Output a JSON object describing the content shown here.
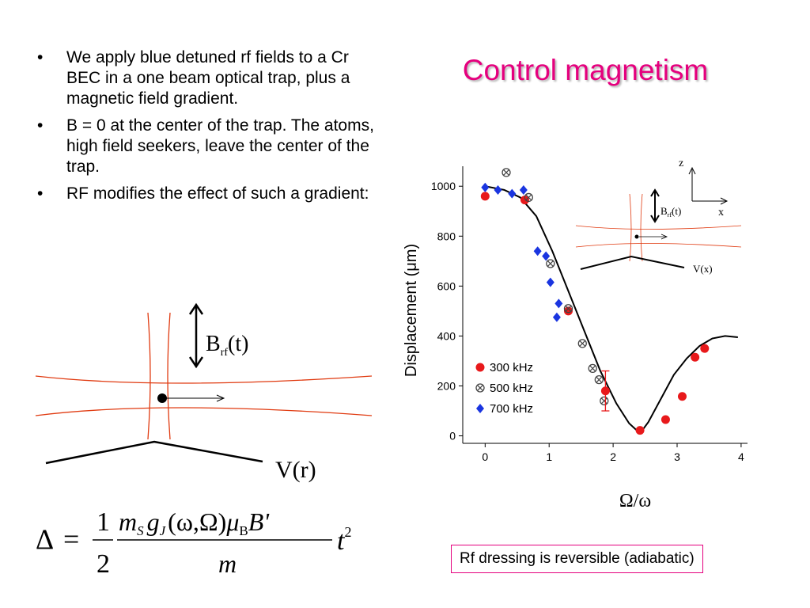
{
  "slide": {
    "title": "Control magnetism",
    "bullets": [
      "We apply blue detuned rf fields to a Cr BEC in a one beam optical trap, plus a magnetic field gradient.",
      "B = 0 at the center of the trap. The atoms, high field seekers, leave the center of the trap.",
      "RF modifies the effect of such a gradient:"
    ],
    "bullet_symbol": "•",
    "note": "Rf dressing is reversible (adiabatic)"
  },
  "diagram": {
    "brf_main": "B",
    "brf_sub": "rf",
    "brf_arg": "(t)",
    "potential_label": "V(r)"
  },
  "formula": {
    "lhs": "Δ",
    "eq": "=",
    "frac_num": "1",
    "frac_den": "2",
    "num_text": "m",
    "num_s": "S",
    "g_text": "g",
    "g_sub": "J",
    "args": "(ω,Ω)",
    "mu": "μ",
    "mu_sub": "B",
    "bprime": "B'",
    "den": "m",
    "t": "t",
    "t_exp": "2"
  },
  "inset": {
    "axis_z": "z",
    "axis_x": "x",
    "brf_main": "B",
    "brf_sub": "rf",
    "brf_arg": "(t)",
    "potential_label": "V(x)"
  },
  "chart_data": {
    "type": "scatter",
    "xlabel": "Ω/ω",
    "ylabel": "Displacement (μm)",
    "xlim": [
      -0.35,
      4.1
    ],
    "ylim": [
      -30,
      1080
    ],
    "x_ticks": [
      0,
      1,
      2,
      3,
      4
    ],
    "y_ticks": [
      0,
      200,
      400,
      600,
      800,
      1000
    ],
    "legend_position": "bottom-left",
    "series": [
      {
        "name": "300 kHz",
        "marker": "circle",
        "color": "#e8191b",
        "points": [
          [
            0.0,
            960
          ],
          [
            0.62,
            945
          ],
          [
            1.3,
            500
          ],
          [
            1.88,
            180
          ],
          [
            2.42,
            22
          ],
          [
            2.82,
            65
          ],
          [
            3.08,
            158
          ],
          [
            3.28,
            315
          ],
          [
            3.43,
            350
          ]
        ]
      },
      {
        "name": "500 kHz",
        "marker": "otimes",
        "color": "#444444",
        "points": [
          [
            0.33,
            1055
          ],
          [
            0.68,
            955
          ],
          [
            1.02,
            690
          ],
          [
            1.3,
            510
          ],
          [
            1.52,
            370
          ],
          [
            1.68,
            270
          ],
          [
            1.78,
            225
          ],
          [
            1.86,
            140
          ]
        ]
      },
      {
        "name": "700 kHz",
        "marker": "diamond",
        "color": "#1a35e0",
        "points": [
          [
            0.0,
            995
          ],
          [
            0.2,
            985
          ],
          [
            0.42,
            970
          ],
          [
            0.6,
            985
          ],
          [
            0.82,
            740
          ],
          [
            0.95,
            720
          ],
          [
            1.02,
            615
          ],
          [
            1.12,
            475
          ],
          [
            1.15,
            530
          ]
        ]
      },
      {
        "name": "",
        "marker": "line",
        "color": "#000000",
        "points": [
          [
            0.0,
            1000
          ],
          [
            0.3,
            985
          ],
          [
            0.55,
            955
          ],
          [
            0.8,
            880
          ],
          [
            1.05,
            740
          ],
          [
            1.3,
            580
          ],
          [
            1.55,
            420
          ],
          [
            1.8,
            260
          ],
          [
            2.05,
            130
          ],
          [
            2.25,
            50
          ],
          [
            2.42,
            10
          ],
          [
            2.55,
            55
          ],
          [
            2.75,
            150
          ],
          [
            2.95,
            245
          ],
          [
            3.15,
            310
          ],
          [
            3.35,
            360
          ],
          [
            3.55,
            390
          ],
          [
            3.75,
            400
          ],
          [
            3.95,
            395
          ]
        ]
      }
    ],
    "error_bar": {
      "x": 1.88,
      "low": 100,
      "high": 260,
      "color": "#e8191b"
    }
  }
}
